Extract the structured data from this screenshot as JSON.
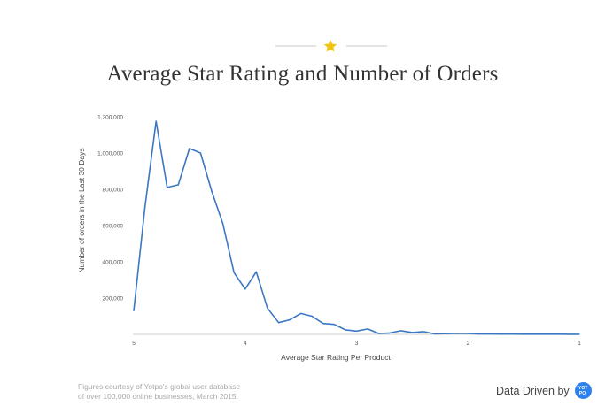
{
  "header": {
    "title": "Average Star Rating and Number of Orders",
    "accent_color": "#f2c40f"
  },
  "chart_data": {
    "type": "line",
    "title": "Average Star Rating and Number of Orders",
    "xlabel": "Average Star Rating Per Product",
    "ylabel": "Number of orders in the Last 30 Days",
    "x_ticks": [
      "5",
      "4",
      "3",
      "2",
      "1"
    ],
    "y_ticks": [
      "200,000",
      "400,000",
      "600,000",
      "800,000",
      "1,000,000",
      "1,200,000"
    ],
    "xlim": [
      5,
      1
    ],
    "ylim": [
      0,
      1200000
    ],
    "grid": false,
    "line_color": "#3a78c3",
    "series": [
      {
        "x": [
          5.0,
          4.9,
          4.8,
          4.7,
          4.6,
          4.5,
          4.4,
          4.3,
          4.2,
          4.1,
          4.0,
          3.9,
          3.8,
          3.7,
          3.6,
          3.5,
          3.4,
          3.3,
          3.2,
          3.1,
          3.0,
          2.9,
          2.8,
          2.7,
          2.6,
          2.5,
          2.4,
          2.3,
          2.2,
          2.1,
          2.0,
          1.9,
          1.8,
          1.7,
          1.6,
          1.5,
          1.4,
          1.3,
          1.2,
          1.1,
          1.0
        ],
        "y": [
          130000,
          700000,
          1175000,
          810000,
          825000,
          1025000,
          1000000,
          790000,
          610000,
          340000,
          250000,
          345000,
          145000,
          65000,
          80000,
          115000,
          100000,
          60000,
          55000,
          25000,
          18000,
          30000,
          5000,
          8000,
          20000,
          10000,
          15000,
          3000,
          4000,
          6000,
          5000,
          2000,
          2000,
          1500,
          1500,
          1000,
          1000,
          800,
          800,
          500,
          500
        ]
      }
    ]
  },
  "footer": {
    "note_line1": "Figures courtesy of Yotpo's global user database",
    "note_line2": "of over 100,000 online businesses, March 2015.",
    "brand_text": "Data Driven by",
    "logo_line1": "YOT",
    "logo_line2": "PO."
  }
}
